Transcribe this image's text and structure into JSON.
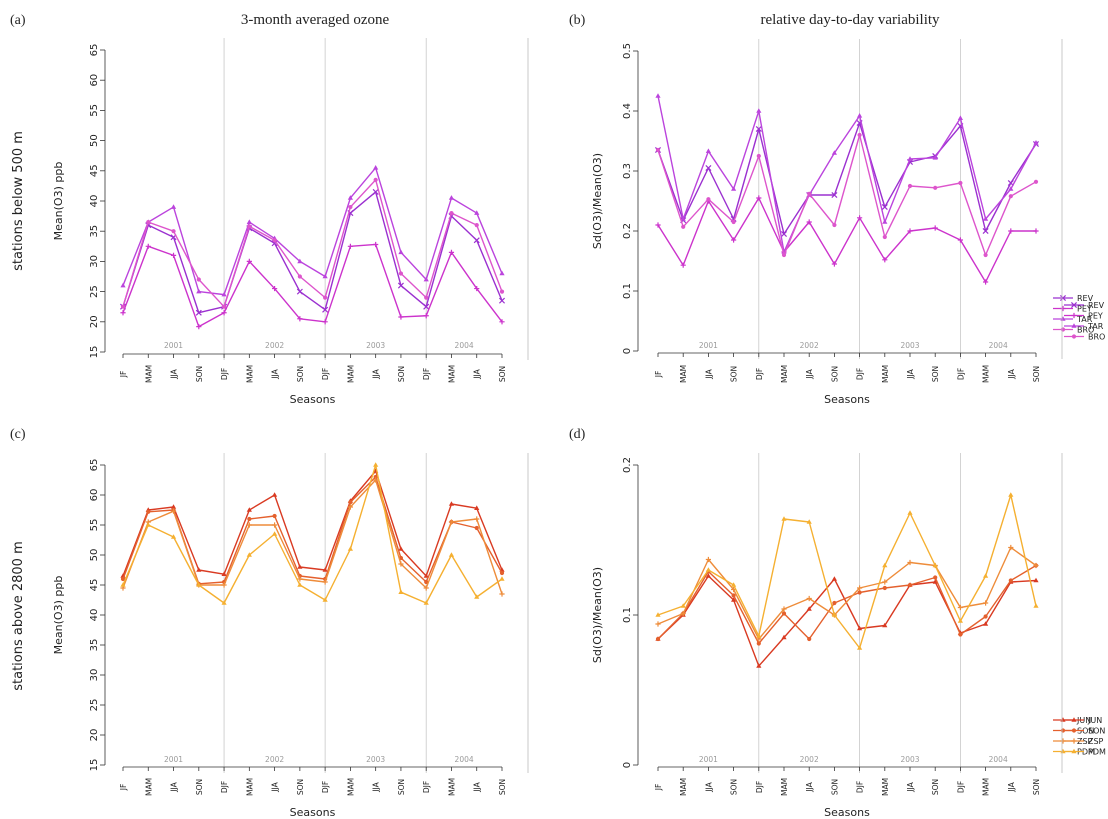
{
  "figure": {
    "top_titles": [
      "3-month averaged ozone",
      "relative day-to-day variability"
    ],
    "row_labels": [
      "stations below 500 m",
      "stations above 2800 m"
    ]
  },
  "chart_data": [
    {
      "id": "a",
      "panel_label": "(a)",
      "type": "line",
      "xlabel": "Seasons",
      "ylabel": "Mean(O3) ppb",
      "ylim": [
        15,
        65
      ],
      "yticks": [
        15,
        20,
        25,
        30,
        35,
        40,
        45,
        50,
        55,
        60,
        65
      ],
      "categories": [
        "JF",
        "MAM",
        "JJA",
        "SON",
        "DJF",
        "MAM",
        "JJA",
        "SON",
        "DJF",
        "MAM",
        "JJA",
        "SON",
        "DJF",
        "MAM",
        "JJA",
        "SON"
      ],
      "years": [
        "2001",
        "2002",
        "2003",
        "2004"
      ],
      "grid": "vertical lines at year boundaries",
      "legend_position": "bottom-right",
      "series": [
        {
          "name": "REV",
          "color": "#9b30d0",
          "marker": "x",
          "values": [
            22.5,
            36.0,
            34.0,
            21.5,
            22.5,
            35.5,
            33.0,
            25.0,
            22.0,
            38.0,
            41.5,
            26.0,
            22.5,
            37.5,
            33.5,
            23.5
          ]
        },
        {
          "name": "PEY",
          "color": "#cc33cc",
          "marker": "plus",
          "values": [
            21.5,
            32.5,
            31.0,
            19.2,
            21.5,
            30.0,
            25.5,
            20.5,
            20.0,
            32.5,
            32.8,
            20.8,
            21.0,
            31.5,
            25.5,
            20.0
          ]
        },
        {
          "name": "TAR",
          "color": "#bb44dd",
          "marker": "triangle",
          "values": [
            26.0,
            36.5,
            39.0,
            25.0,
            24.5,
            36.5,
            33.8,
            30.0,
            27.5,
            40.5,
            45.5,
            31.5,
            27.0,
            40.5,
            38.0,
            28.0
          ]
        },
        {
          "name": "BRO",
          "color": "#dd55cc",
          "marker": "circle",
          "values": [
            22.5,
            36.5,
            35.0,
            27.0,
            22.5,
            35.8,
            33.5,
            27.5,
            24.0,
            39.0,
            43.5,
            28.0,
            24.0,
            38.0,
            36.0,
            25.0
          ]
        }
      ]
    },
    {
      "id": "b",
      "panel_label": "(b)",
      "type": "line",
      "xlabel": "Seasons",
      "ylabel": "Sd(O3)/Mean(O3)",
      "ylim": [
        0,
        0.5
      ],
      "yticks": [
        0,
        0.1,
        0.2,
        0.3,
        0.4,
        0.5
      ],
      "categories": [
        "JF",
        "MAM",
        "JJA",
        "SON",
        "DJF",
        "MAM",
        "JJA",
        "SON",
        "DJF",
        "MAM",
        "JJA",
        "SON",
        "DJF",
        "MAM",
        "JJA",
        "SON"
      ],
      "years": [
        "2001",
        "2002",
        "2003",
        "2004"
      ],
      "grid": "vertical lines at year boundaries",
      "legend_position": "bottom-right",
      "series": [
        {
          "name": "REV",
          "color": "#9b30d0",
          "marker": "x",
          "values": [
            0.335,
            0.218,
            0.305,
            0.22,
            0.37,
            0.195,
            0.26,
            0.26,
            0.38,
            0.24,
            0.315,
            0.325,
            0.375,
            0.2,
            0.28,
            0.345
          ]
        },
        {
          "name": "PEY",
          "color": "#cc33cc",
          "marker": "plus",
          "values": [
            0.21,
            0.143,
            0.25,
            0.185,
            0.255,
            0.165,
            0.215,
            0.145,
            0.222,
            0.152,
            0.2,
            0.205,
            0.185,
            0.115,
            0.2,
            0.2
          ]
        },
        {
          "name": "TAR",
          "color": "#bb44dd",
          "marker": "triangle",
          "values": [
            0.425,
            0.22,
            0.333,
            0.27,
            0.4,
            0.165,
            0.26,
            0.33,
            0.392,
            0.215,
            0.32,
            0.322,
            0.388,
            0.22,
            0.27,
            0.347
          ]
        },
        {
          "name": "BRO",
          "color": "#dd55cc",
          "marker": "circle",
          "values": [
            0.335,
            0.207,
            0.253,
            0.215,
            0.325,
            0.16,
            0.262,
            0.21,
            0.36,
            0.19,
            0.275,
            0.272,
            0.28,
            0.16,
            0.258,
            0.282
          ]
        }
      ]
    },
    {
      "id": "c",
      "panel_label": "(c)",
      "type": "line",
      "xlabel": "Seasons",
      "ylabel": "Mean(O3) ppb",
      "ylim": [
        15,
        65
      ],
      "yticks": [
        15,
        20,
        25,
        30,
        35,
        40,
        45,
        50,
        55,
        60,
        65
      ],
      "categories": [
        "JF",
        "MAM",
        "JJA",
        "SON",
        "DJF",
        "MAM",
        "JJA",
        "SON",
        "DJF",
        "MAM",
        "JJA",
        "SON",
        "DJF",
        "MAM",
        "JJA",
        "SON"
      ],
      "years": [
        "2001",
        "2002",
        "2003",
        "2004"
      ],
      "grid": "vertical lines at year boundaries",
      "legend_position": "bottom-right",
      "series": [
        {
          "name": "JUN",
          "color": "#d93a22",
          "marker": "triangle",
          "values": [
            46.5,
            57.5,
            58.0,
            47.5,
            46.8,
            57.5,
            60.0,
            48.0,
            47.5,
            59.0,
            64.0,
            51.0,
            46.5,
            58.5,
            57.8,
            47.5
          ]
        },
        {
          "name": "SON",
          "color": "#e4602d",
          "marker": "circle",
          "values": [
            46.0,
            57.2,
            57.5,
            45.2,
            45.5,
            56.0,
            56.5,
            46.5,
            46.0,
            58.8,
            63.0,
            49.5,
            45.5,
            55.5,
            54.5,
            47.0
          ]
        },
        {
          "name": "ZSP",
          "color": "#ee8c3a",
          "marker": "plus",
          "values": [
            44.5,
            55.5,
            57.3,
            45.0,
            45.0,
            55.0,
            55.0,
            46.0,
            45.5,
            58.0,
            62.5,
            48.5,
            44.5,
            55.5,
            56.0,
            43.5
          ]
        },
        {
          "name": "PDM",
          "color": "#f5b031",
          "marker": "triangle",
          "values": [
            45.0,
            55.0,
            53.0,
            45.0,
            42.0,
            50.0,
            53.5,
            45.0,
            42.5,
            51.0,
            65.0,
            43.8,
            42.0,
            50.0,
            43.0,
            46.0
          ]
        }
      ]
    },
    {
      "id": "d",
      "panel_label": "(d)",
      "type": "line",
      "xlabel": "Seasons",
      "ylabel": "Sd(O3)/Mean(O3)",
      "ylim": [
        0,
        0.2
      ],
      "yticks": [
        0,
        0.1,
        0.2
      ],
      "categories": [
        "JF",
        "MAM",
        "JJA",
        "SON",
        "DJF",
        "MAM",
        "JJA",
        "SON",
        "DJF",
        "MAM",
        "JJA",
        "SON",
        "DJF",
        "MAM",
        "JJA",
        "SON"
      ],
      "years": [
        "2001",
        "2002",
        "2003",
        "2004"
      ],
      "grid": "vertical lines at year boundaries",
      "legend_position": "bottom-right",
      "series": [
        {
          "name": "JUN",
          "color": "#d93a22",
          "marker": "triangle",
          "values": [
            0.084,
            0.1,
            0.126,
            0.11,
            0.066,
            0.085,
            0.104,
            0.124,
            0.091,
            0.093,
            0.12,
            0.122,
            0.088,
            0.094,
            0.122,
            0.123
          ]
        },
        {
          "name": "SON",
          "color": "#e4602d",
          "marker": "circle",
          "values": [
            0.084,
            0.101,
            0.129,
            0.113,
            0.081,
            0.101,
            0.084,
            0.108,
            0.115,
            0.118,
            0.12,
            0.125,
            0.087,
            0.099,
            0.123,
            0.133
          ]
        },
        {
          "name": "ZSP",
          "color": "#ee8c3a",
          "marker": "plus",
          "values": [
            0.094,
            0.101,
            0.137,
            0.117,
            0.084,
            0.104,
            0.111,
            0.1,
            0.118,
            0.122,
            0.135,
            0.133,
            0.105,
            0.108,
            0.145,
            0.133
          ]
        },
        {
          "name": "PDM",
          "color": "#f5b031",
          "marker": "triangle",
          "values": [
            0.1,
            0.106,
            0.13,
            0.12,
            0.086,
            0.164,
            0.162,
            0.1,
            0.078,
            0.133,
            0.168,
            0.133,
            0.096,
            0.126,
            0.18,
            0.106
          ]
        }
      ]
    }
  ]
}
